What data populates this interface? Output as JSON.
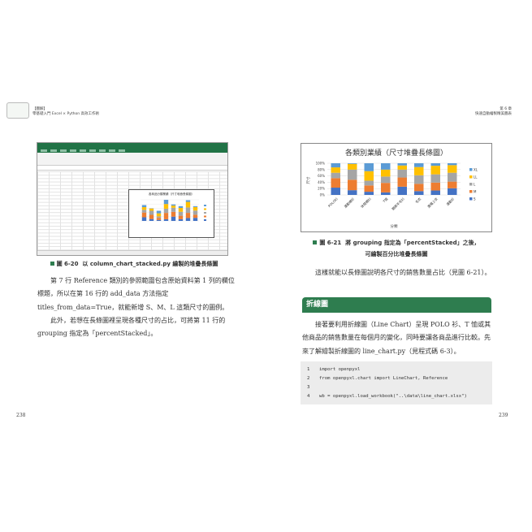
{
  "left_page": {
    "header": {
      "label": "【圖解】",
      "book_title": "零基礎入門 Excel × Python 高效工作術"
    },
    "figure_caption": {
      "number": "圖 6-20",
      "text": "以 column_chart_stacked.py 繪製的堆疊長條圖"
    },
    "mini_chart_title": "各商品分類業績（尺寸堆疊長條圖）",
    "paragraphs": [
      "第 7 行 Reference 類別的參照範圍包含原始資料第 1 列的欄位標題，所以在第 16 行的 add_data 方法指定 titles_from_data=True，就能新增 S、M、L 這類尺寸的圖例。",
      "此外，若想在長條圖裡呈現各種尺寸的占比，可將第 11 行的 grouping 指定為「percentStacked」。"
    ],
    "page_number": "238"
  },
  "right_page": {
    "header": {
      "chapter": "第 6 章",
      "chapter_title": "快速自動繪製精美圖表"
    },
    "figure_caption": {
      "number": "圖 6-21",
      "line1": "將 grouping 指定為「percentStacked」之後，",
      "line2": "可繪製百分比堆疊長條圖"
    },
    "paragraph1": "這樣就能以長條圖說明各尺寸的銷售數量占比（見圖 6-21）。",
    "section_heading": "折線圖",
    "paragraph2": "接著要利用折線圖（Line Chart）呈現 POLO 衫、T 恤或其他商品的銷售數量在每個月的變化，同時要讓各商品進行比較。先來了解繪製折線圖的 line_chart.py（見程式碼 6-3）。",
    "code": [
      {
        "no": "1",
        "text": "import openpyxl"
      },
      {
        "no": "2",
        "text": "from openpyxl.chart import LineChart, Reference"
      },
      {
        "no": "3",
        "text": ""
      },
      {
        "no": "4",
        "text": "wb = openpyxl.load_workbook(\"..\\data\\line_chart.xlsx\")"
      }
    ],
    "page_number": "239"
  },
  "colors": {
    "accent_green": "#2e7d4f",
    "S": "#4472c4",
    "M": "#ed7d31",
    "L": "#a5a5a5",
    "LL": "#ffc000",
    "XL": "#5b9bd5"
  },
  "chart_data": {
    "type": "bar",
    "stacked": "percent",
    "title": "各類別業績（尺寸堆疊長條圖）",
    "xlabel": "分類",
    "ylabel": "尺寸",
    "categories": [
      "POLO衫",
      "運動襯衫",
      "休閒襯衫",
      "T恤",
      "開襟羊毛衫",
      "毛衣",
      "連帽上衣",
      "運動衫"
    ],
    "yticks": [
      "0%",
      "20%",
      "40%",
      "60%",
      "80%",
      "100%"
    ],
    "ylim": [
      0,
      100
    ],
    "grid": true,
    "legend": "right",
    "series": [
      {
        "name": "S",
        "values": [
          23,
          15,
          10,
          8,
          26,
          12,
          14,
          21
        ]
      },
      {
        "name": "M",
        "values": [
          30,
          33,
          20,
          30,
          29,
          23,
          25,
          21
        ]
      },
      {
        "name": "L",
        "values": [
          17,
          32,
          15,
          20,
          25,
          27,
          26,
          28
        ]
      },
      {
        "name": "LL",
        "values": [
          17,
          18,
          30,
          22,
          13,
          26,
          27,
          24
        ]
      },
      {
        "name": "XL",
        "values": [
          13,
          2,
          25,
          20,
          7,
          12,
          8,
          6
        ]
      }
    ]
  }
}
